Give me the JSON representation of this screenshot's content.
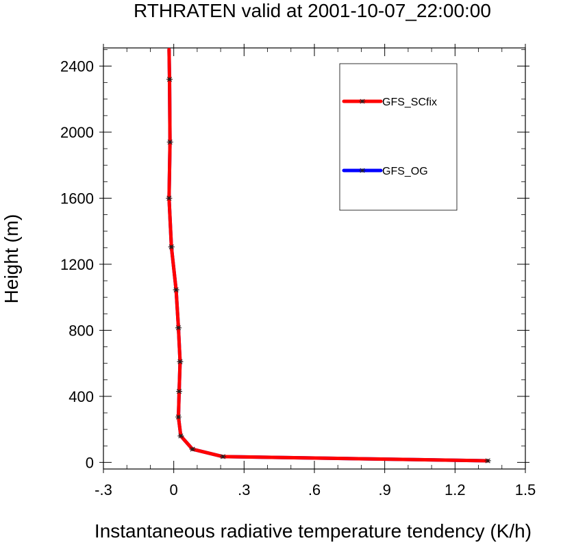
{
  "chart_data": {
    "type": "line",
    "title": "RTHRATEN valid at 2001-10-07_22:00:00",
    "xlabel": "Instantaneous radiative temperature tendency (K/h)",
    "ylabel": "Height (m)",
    "xlim": [
      -0.3,
      1.5
    ],
    "ylim": [
      -40,
      2510
    ],
    "x_ticks": [
      -0.3,
      0,
      0.3,
      0.6,
      0.9,
      1.2,
      1.5
    ],
    "x_tick_labels": [
      "-.3",
      "0",
      ".3",
      ".6",
      ".9",
      "1.2",
      "1.5"
    ],
    "y_ticks": [
      0,
      400,
      800,
      1200,
      1600,
      2000,
      2400
    ],
    "y_tick_labels": [
      "0",
      "400",
      "800",
      "1200",
      "1600",
      "2000",
      "2400"
    ],
    "grid": false,
    "legend_position": "top-right",
    "series": [
      {
        "name": "GFS_OG",
        "color": "#0000ff",
        "marker": "star",
        "points": [
          [
            1.34,
            10
          ],
          [
            0.21,
            35
          ],
          [
            0.08,
            80
          ],
          [
            0.03,
            160
          ],
          [
            0.02,
            275
          ],
          [
            0.023,
            430
          ],
          [
            0.027,
            610
          ],
          [
            0.02,
            815
          ],
          [
            0.01,
            1045
          ],
          [
            -0.01,
            1305
          ],
          [
            -0.02,
            1600
          ],
          [
            -0.016,
            1940
          ],
          [
            -0.018,
            2320
          ],
          [
            -0.02,
            2500
          ]
        ]
      },
      {
        "name": "GFS_SCfix",
        "color": "#ff0000",
        "marker": "star",
        "points": [
          [
            1.34,
            10
          ],
          [
            0.21,
            35
          ],
          [
            0.08,
            80
          ],
          [
            0.03,
            160
          ],
          [
            0.02,
            275
          ],
          [
            0.023,
            430
          ],
          [
            0.027,
            610
          ],
          [
            0.02,
            815
          ],
          [
            0.01,
            1045
          ],
          [
            -0.01,
            1305
          ],
          [
            -0.02,
            1600
          ],
          [
            -0.016,
            1940
          ],
          [
            -0.018,
            2320
          ],
          [
            -0.02,
            2500
          ]
        ]
      }
    ],
    "legend": [
      {
        "name": "GFS_SCfix",
        "color": "#ff0000"
      },
      {
        "name": "GFS_OG",
        "color": "#0000ff"
      }
    ]
  }
}
